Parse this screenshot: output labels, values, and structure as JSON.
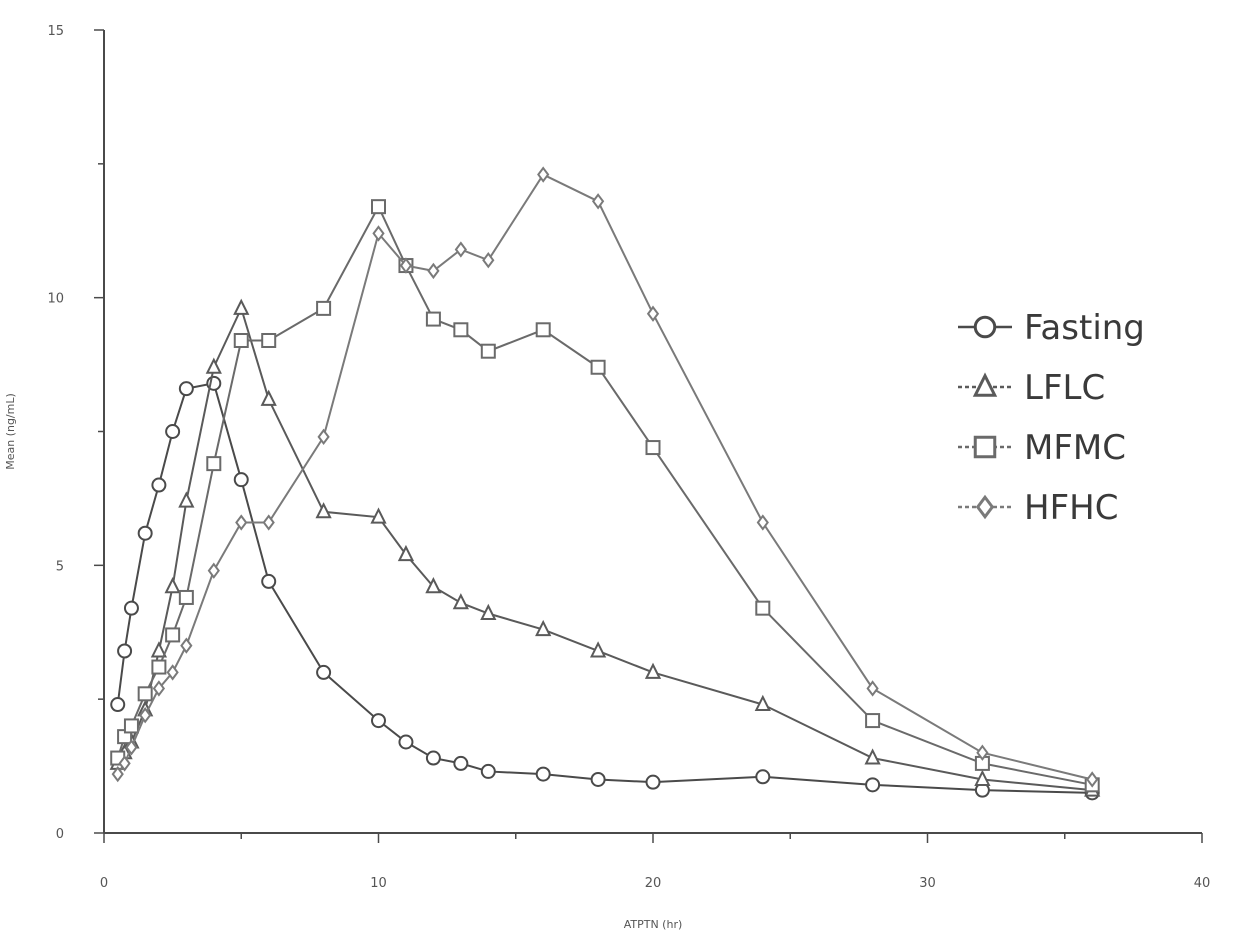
{
  "chart_data": {
    "type": "line",
    "xlabel": "ATPTN (hr)",
    "ylabel": "Mean (ng/mL)",
    "xlim": [
      0,
      40
    ],
    "ylim": [
      0,
      15
    ],
    "xticks": [
      0,
      10,
      20,
      30,
      40
    ],
    "yticks": [
      0,
      5,
      10,
      15
    ],
    "grid": false,
    "legend_position": "right",
    "series": [
      {
        "name": "Fasting",
        "marker": "circle",
        "color": "#4a4a4a",
        "x": [
          0.5,
          0.75,
          1,
          1.5,
          2,
          2.5,
          3,
          4,
          5,
          6,
          8,
          10,
          11,
          12,
          13,
          14,
          16,
          18,
          20,
          24,
          28,
          32,
          36
        ],
        "y": [
          2.4,
          3.4,
          4.2,
          5.6,
          6.5,
          7.5,
          8.3,
          8.4,
          6.6,
          4.7,
          3.0,
          2.1,
          1.7,
          1.4,
          1.3,
          1.15,
          1.1,
          1.0,
          0.95,
          1.05,
          0.9,
          0.8,
          0.75
        ]
      },
      {
        "name": "LFLC",
        "marker": "triangle",
        "color": "#5a5a5a",
        "x": [
          0.5,
          0.75,
          1,
          1.5,
          2,
          2.5,
          3,
          4,
          5,
          6,
          8,
          10,
          11,
          12,
          13,
          14,
          16,
          18,
          20,
          24,
          28,
          32,
          36
        ],
        "y": [
          1.3,
          1.5,
          1.7,
          2.3,
          3.4,
          4.6,
          6.2,
          8.7,
          9.8,
          8.1,
          6.0,
          5.9,
          5.2,
          4.6,
          4.3,
          4.1,
          3.8,
          3.4,
          3.0,
          2.4,
          1.4,
          1.0,
          0.8
        ]
      },
      {
        "name": "MFMC",
        "marker": "square",
        "color": "#6a6a6a",
        "x": [
          0.5,
          0.75,
          1,
          1.5,
          2,
          2.5,
          3,
          4,
          5,
          6,
          8,
          10,
          11,
          12,
          13,
          14,
          16,
          18,
          20,
          24,
          28,
          32,
          36
        ],
        "y": [
          1.4,
          1.8,
          2.0,
          2.6,
          3.1,
          3.7,
          4.4,
          6.9,
          9.2,
          9.2,
          9.8,
          11.7,
          10.6,
          9.6,
          9.4,
          9.0,
          9.4,
          8.7,
          7.2,
          4.2,
          2.1,
          1.3,
          0.9
        ]
      },
      {
        "name": "HFHC",
        "marker": "diamond",
        "color": "#7a7a7a",
        "x": [
          0.5,
          0.75,
          1,
          1.5,
          2,
          2.5,
          3,
          4,
          5,
          6,
          8,
          10,
          11,
          12,
          13,
          14,
          16,
          18,
          20,
          24,
          28,
          32,
          36
        ],
        "y": [
          1.1,
          1.3,
          1.6,
          2.2,
          2.7,
          3.0,
          3.5,
          4.9,
          5.8,
          5.8,
          7.4,
          11.2,
          10.6,
          10.5,
          10.9,
          10.7,
          12.3,
          11.8,
          9.7,
          5.8,
          2.7,
          1.5,
          1.0
        ]
      }
    ]
  }
}
